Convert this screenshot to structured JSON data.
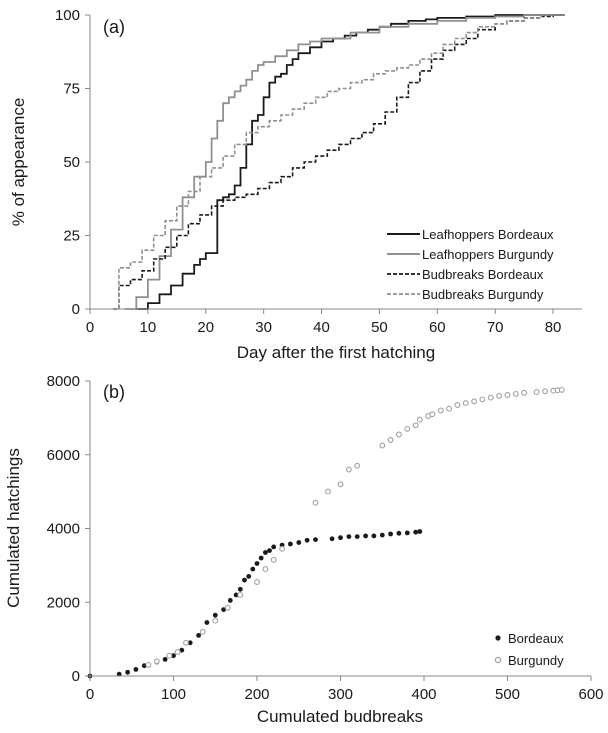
{
  "chart_data": [
    {
      "type": "line",
      "panel_label": "(a)",
      "xlabel": "Day after the first hatching",
      "ylabel": "% of appearance",
      "xlim": [
        0,
        85
      ],
      "ylim": [
        0,
        100
      ],
      "xticks": [
        0,
        10,
        20,
        30,
        40,
        50,
        60,
        70,
        80
      ],
      "yticks": [
        0,
        25,
        50,
        75,
        100
      ],
      "legend_position": "bottom-right",
      "series": [
        {
          "name": "Leafhoppers Bordeaux",
          "color": "#1a1a1a",
          "dash": "solid",
          "x": [
            8,
            10,
            12,
            14,
            16,
            18,
            19,
            20,
            21,
            22,
            23,
            24,
            25,
            26,
            27,
            28,
            29,
            30,
            31,
            32,
            33,
            34,
            35,
            36,
            38,
            40,
            42,
            44,
            46,
            48,
            50,
            52,
            55,
            58,
            60,
            62,
            65,
            70,
            75,
            80,
            82
          ],
          "y": [
            0,
            2,
            5,
            8,
            12,
            15,
            17,
            19,
            19,
            37,
            38,
            39,
            42,
            48,
            56,
            64,
            66,
            72,
            77,
            79,
            80,
            83,
            85,
            87,
            89,
            91,
            92,
            93,
            94,
            95,
            96,
            97,
            98,
            98.5,
            99,
            99,
            99.5,
            100,
            100,
            100,
            100
          ]
        },
        {
          "name": "Leafhoppers Burgundy",
          "color": "#909090",
          "dash": "solid",
          "x": [
            6,
            8,
            10,
            12,
            14,
            16,
            18,
            20,
            21,
            22,
            23,
            24,
            25,
            26,
            27,
            28,
            29,
            30,
            32,
            34,
            36,
            38,
            40,
            45,
            50,
            55,
            60,
            65,
            70,
            75,
            80,
            82
          ],
          "y": [
            0,
            4,
            10,
            18,
            27,
            38,
            45,
            50,
            58,
            64,
            70,
            72,
            74,
            76,
            78,
            81,
            83,
            84,
            86,
            88,
            90,
            91,
            92,
            94,
            96,
            97,
            98,
            99,
            99.5,
            100,
            100,
            100
          ]
        },
        {
          "name": "Budbreaks Bordeaux",
          "color": "#1a1a1a",
          "dash": "dashed",
          "x": [
            4,
            5,
            7,
            9,
            11,
            13,
            15,
            17,
            19,
            21,
            23,
            25,
            27,
            29,
            31,
            33,
            35,
            37,
            39,
            41,
            43,
            45,
            47,
            49,
            51,
            53,
            55,
            57,
            59,
            61,
            63,
            65,
            67,
            70,
            72,
            75,
            78,
            80,
            82
          ],
          "y": [
            0,
            8,
            10,
            13,
            17,
            21,
            25,
            29,
            32,
            35,
            37,
            38,
            39,
            41,
            43,
            45,
            48,
            50,
            52,
            54,
            56,
            58,
            60,
            63,
            67,
            72,
            77,
            81,
            85,
            88,
            90,
            92,
            95,
            97,
            98,
            99,
            99.5,
            100,
            100
          ]
        },
        {
          "name": "Budbreaks Burgundy",
          "color": "#909090",
          "dash": "dashed",
          "x": [
            4,
            5,
            7,
            9,
            11,
            13,
            15,
            17,
            19,
            21,
            23,
            25,
            27,
            29,
            31,
            33,
            35,
            37,
            39,
            41,
            43,
            45,
            47,
            49,
            51,
            53,
            55,
            57,
            59,
            61,
            63,
            65,
            67,
            70,
            72,
            75,
            78,
            80,
            82
          ],
          "y": [
            0,
            14,
            16,
            20,
            25,
            30,
            35,
            40,
            45,
            48,
            52,
            56,
            60,
            62,
            64,
            66,
            68,
            70,
            72,
            74,
            75,
            77,
            78,
            80,
            81,
            82,
            83,
            85,
            87,
            90,
            92,
            94,
            96,
            97,
            98,
            99,
            100,
            100,
            100
          ]
        }
      ]
    },
    {
      "type": "scatter",
      "panel_label": "(b)",
      "xlabel": "Cumulated budbreaks",
      "ylabel": "Cumulated hatchings",
      "xlim": [
        0,
        600
      ],
      "ylim": [
        0,
        8000
      ],
      "xticks": [
        0,
        100,
        200,
        300,
        400,
        500,
        600
      ],
      "yticks": [
        0,
        2000,
        4000,
        6000,
        8000
      ],
      "legend_position": "bottom-right",
      "series": [
        {
          "name": "Bordeaux",
          "color": "#1a1a1a",
          "marker": "filled-circle",
          "x": [
            0,
            35,
            45,
            55,
            65,
            80,
            90,
            100,
            110,
            120,
            130,
            140,
            150,
            160,
            168,
            175,
            180,
            185,
            190,
            195,
            200,
            205,
            210,
            215,
            220,
            230,
            240,
            250,
            260,
            270,
            290,
            300,
            310,
            320,
            330,
            340,
            350,
            360,
            370,
            380,
            390,
            395
          ],
          "y": [
            0,
            50,
            100,
            180,
            280,
            380,
            450,
            550,
            700,
            900,
            1100,
            1450,
            1650,
            1800,
            2050,
            2200,
            2350,
            2600,
            2700,
            2900,
            3050,
            3200,
            3350,
            3400,
            3500,
            3550,
            3580,
            3620,
            3680,
            3700,
            3720,
            3750,
            3780,
            3780,
            3800,
            3800,
            3820,
            3850,
            3870,
            3880,
            3900,
            3920
          ]
        },
        {
          "name": "Burgundy",
          "color": "#a0a0a0",
          "marker": "open-circle",
          "x": [
            70,
            80,
            95,
            105,
            115,
            135,
            150,
            165,
            180,
            200,
            210,
            220,
            230,
            270,
            285,
            300,
            310,
            320,
            350,
            360,
            370,
            380,
            390,
            395,
            405,
            410,
            420,
            430,
            440,
            450,
            460,
            470,
            480,
            490,
            500,
            510,
            520,
            535,
            545,
            555,
            560,
            565
          ],
          "y": [
            300,
            400,
            550,
            650,
            900,
            1200,
            1500,
            1850,
            2200,
            2550,
            2900,
            3150,
            3450,
            4700,
            5000,
            5200,
            5600,
            5700,
            6250,
            6400,
            6550,
            6700,
            6800,
            6950,
            7050,
            7100,
            7200,
            7250,
            7350,
            7400,
            7450,
            7500,
            7550,
            7600,
            7620,
            7650,
            7680,
            7700,
            7720,
            7740,
            7750,
            7760
          ]
        }
      ]
    }
  ]
}
